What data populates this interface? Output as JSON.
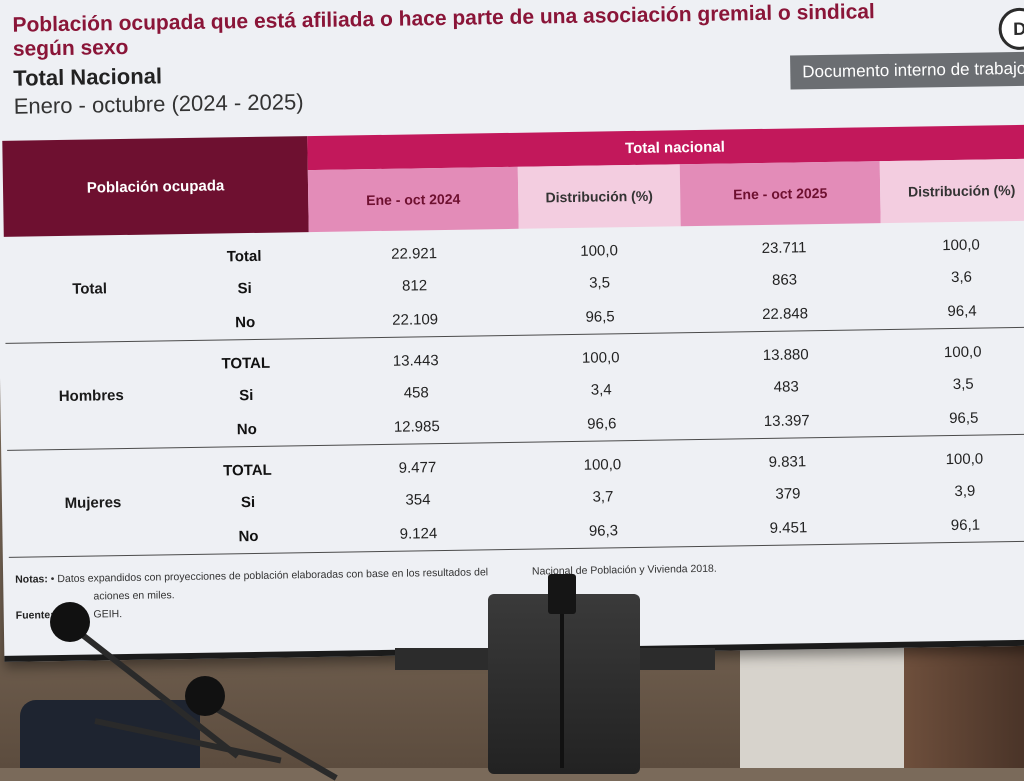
{
  "slide": {
    "title": "Población ocupada que está afiliada o hace parte de una asociación gremial o sindical según sexo",
    "subtitle": "Total Nacional",
    "period": "Enero - octubre (2024 - 2025)",
    "badge": "Documento interno de trabajo",
    "logo": "D"
  },
  "table": {
    "header_left": "Población ocupada",
    "header_group": "Total nacional",
    "columns": [
      "Ene - oct 2024",
      "Distribución (%)",
      "Ene - oct 2025",
      "Distribución (%)"
    ],
    "groups": [
      {
        "name": "Total",
        "rows": [
          {
            "label": "Total",
            "v1": "22.921",
            "v2": "100,0",
            "v3": "23.711",
            "v4": "100,0"
          },
          {
            "label": "Si",
            "v1": "812",
            "v2": "3,5",
            "v3": "863",
            "v4": "3,6"
          },
          {
            "label": "No",
            "v1": "22.109",
            "v2": "96,5",
            "v3": "22.848",
            "v4": "96,4"
          }
        ]
      },
      {
        "name": "Hombres",
        "rows": [
          {
            "label": "TOTAL",
            "v1": "13.443",
            "v2": "100,0",
            "v3": "13.880",
            "v4": "100,0"
          },
          {
            "label": "Si",
            "v1": "458",
            "v2": "3,4",
            "v3": "483",
            "v4": "3,5"
          },
          {
            "label": "No",
            "v1": "12.985",
            "v2": "96,6",
            "v3": "13.397",
            "v4": "96,5"
          }
        ]
      },
      {
        "name": "Mujeres",
        "rows": [
          {
            "label": "TOTAL",
            "v1": "9.477",
            "v2": "100,0",
            "v3": "9.831",
            "v4": "100,0"
          },
          {
            "label": "Si",
            "v1": "354",
            "v2": "3,7",
            "v3": "379",
            "v4": "3,9"
          },
          {
            "label": "No",
            "v1": "9.124",
            "v2": "96,3",
            "v3": "9.451",
            "v4": "96,1"
          }
        ]
      }
    ]
  },
  "notes": {
    "label_notas": "Notas:",
    "note1": "• Datos expandidos con proyecciones de población elaboradas con base en los resultados del",
    "note1_end": "Nacional de Población y Vivienda 2018.",
    "note2": "aciones en miles.",
    "label_fuente": "Fuente:",
    "fuente": "GEIH."
  }
}
